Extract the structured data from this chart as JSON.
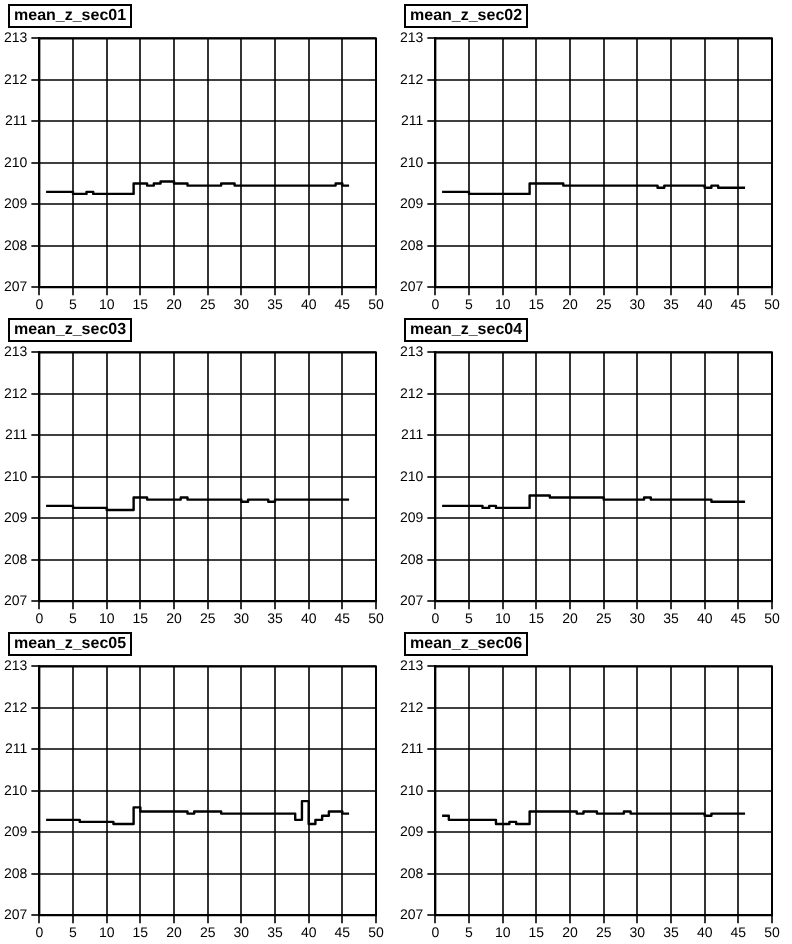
{
  "chart_data": [
    {
      "type": "step",
      "title": "mean_z_sec01",
      "x": [
        1,
        2,
        3,
        4,
        5,
        6,
        7,
        8,
        9,
        10,
        11,
        12,
        13,
        14,
        15,
        16,
        17,
        18,
        19,
        20,
        21,
        22,
        23,
        24,
        25,
        26,
        27,
        28,
        29,
        30,
        31,
        32,
        33,
        34,
        35,
        36,
        37,
        38,
        39,
        40,
        41,
        42,
        43,
        44,
        45,
        46
      ],
      "color": "#000000",
      "values": [
        209.3,
        209.3,
        209.3,
        209.3,
        209.25,
        209.25,
        209.3,
        209.25,
        209.25,
        209.25,
        209.25,
        209.25,
        209.25,
        209.5,
        209.5,
        209.45,
        209.5,
        209.55,
        209.55,
        209.5,
        209.5,
        209.45,
        209.45,
        209.45,
        209.45,
        209.45,
        209.5,
        209.5,
        209.45,
        209.45,
        209.45,
        209.45,
        209.45,
        209.45,
        209.45,
        209.45,
        209.45,
        209.45,
        209.45,
        209.45,
        209.45,
        209.45,
        209.45,
        209.5,
        209.45,
        209.45
      ],
      "xlim": [
        0,
        50
      ],
      "xticks": [
        0,
        5,
        10,
        15,
        20,
        25,
        30,
        35,
        40,
        45,
        50
      ],
      "ylim": [
        207,
        213
      ],
      "yticks": [
        207,
        208,
        209,
        210,
        211,
        212,
        213
      ],
      "grid": true
    },
    {
      "type": "step",
      "title": "mean_z_sec02",
      "x": [
        1,
        2,
        3,
        4,
        5,
        6,
        7,
        8,
        9,
        10,
        11,
        12,
        13,
        14,
        15,
        16,
        17,
        18,
        19,
        20,
        21,
        22,
        23,
        24,
        25,
        26,
        27,
        28,
        29,
        30,
        31,
        32,
        33,
        34,
        35,
        36,
        37,
        38,
        39,
        40,
        41,
        42,
        43,
        44,
        45,
        46
      ],
      "color": "#000000",
      "values": [
        209.3,
        209.3,
        209.3,
        209.3,
        209.25,
        209.25,
        209.25,
        209.25,
        209.25,
        209.25,
        209.25,
        209.25,
        209.25,
        209.5,
        209.5,
        209.5,
        209.5,
        209.5,
        209.45,
        209.45,
        209.45,
        209.45,
        209.45,
        209.45,
        209.45,
        209.45,
        209.45,
        209.45,
        209.45,
        209.45,
        209.45,
        209.45,
        209.4,
        209.45,
        209.45,
        209.45,
        209.45,
        209.45,
        209.45,
        209.4,
        209.45,
        209.4,
        209.4,
        209.4,
        209.4,
        209.4
      ],
      "xlim": [
        0,
        50
      ],
      "xticks": [
        0,
        5,
        10,
        15,
        20,
        25,
        30,
        35,
        40,
        45,
        50
      ],
      "ylim": [
        207,
        213
      ],
      "yticks": [
        207,
        208,
        209,
        210,
        211,
        212,
        213
      ],
      "grid": true
    },
    {
      "type": "step",
      "title": "mean_z_sec03",
      "x": [
        1,
        2,
        3,
        4,
        5,
        6,
        7,
        8,
        9,
        10,
        11,
        12,
        13,
        14,
        15,
        16,
        17,
        18,
        19,
        20,
        21,
        22,
        23,
        24,
        25,
        26,
        27,
        28,
        29,
        30,
        31,
        32,
        33,
        34,
        35,
        36,
        37,
        38,
        39,
        40,
        41,
        42,
        43,
        44,
        45,
        46
      ],
      "color": "#000000",
      "values": [
        209.3,
        209.3,
        209.3,
        209.3,
        209.25,
        209.25,
        209.25,
        209.25,
        209.25,
        209.2,
        209.2,
        209.2,
        209.2,
        209.5,
        209.5,
        209.45,
        209.45,
        209.45,
        209.45,
        209.45,
        209.5,
        209.45,
        209.45,
        209.45,
        209.45,
        209.45,
        209.45,
        209.45,
        209.45,
        209.4,
        209.45,
        209.45,
        209.45,
        209.4,
        209.45,
        209.45,
        209.45,
        209.45,
        209.45,
        209.45,
        209.45,
        209.45,
        209.45,
        209.45,
        209.45,
        209.45
      ],
      "xlim": [
        0,
        50
      ],
      "xticks": [
        0,
        5,
        10,
        15,
        20,
        25,
        30,
        35,
        40,
        45,
        50
      ],
      "ylim": [
        207,
        213
      ],
      "yticks": [
        207,
        208,
        209,
        210,
        211,
        212,
        213
      ],
      "grid": true
    },
    {
      "type": "step",
      "title": "mean_z_sec04",
      "x": [
        1,
        2,
        3,
        4,
        5,
        6,
        7,
        8,
        9,
        10,
        11,
        12,
        13,
        14,
        15,
        16,
        17,
        18,
        19,
        20,
        21,
        22,
        23,
        24,
        25,
        26,
        27,
        28,
        29,
        30,
        31,
        32,
        33,
        34,
        35,
        36,
        37,
        38,
        39,
        40,
        41,
        42,
        43,
        44,
        45,
        46
      ],
      "color": "#000000",
      "values": [
        209.3,
        209.3,
        209.3,
        209.3,
        209.3,
        209.3,
        209.25,
        209.3,
        209.25,
        209.25,
        209.25,
        209.25,
        209.25,
        209.55,
        209.55,
        209.55,
        209.5,
        209.5,
        209.5,
        209.5,
        209.5,
        209.5,
        209.5,
        209.5,
        209.45,
        209.45,
        209.45,
        209.45,
        209.45,
        209.45,
        209.5,
        209.45,
        209.45,
        209.45,
        209.45,
        209.45,
        209.45,
        209.45,
        209.45,
        209.45,
        209.4,
        209.4,
        209.4,
        209.4,
        209.4,
        209.4
      ],
      "xlim": [
        0,
        50
      ],
      "xticks": [
        0,
        5,
        10,
        15,
        20,
        25,
        30,
        35,
        40,
        45,
        50
      ],
      "ylim": [
        207,
        213
      ],
      "yticks": [
        207,
        208,
        209,
        210,
        211,
        212,
        213
      ],
      "grid": true
    },
    {
      "type": "step",
      "title": "mean_z_sec05",
      "x": [
        1,
        2,
        3,
        4,
        5,
        6,
        7,
        8,
        9,
        10,
        11,
        12,
        13,
        14,
        15,
        16,
        17,
        18,
        19,
        20,
        21,
        22,
        23,
        24,
        25,
        26,
        27,
        28,
        29,
        30,
        31,
        32,
        33,
        34,
        35,
        36,
        37,
        38,
        39,
        40,
        41,
        42,
        43,
        44,
        45,
        46
      ],
      "color": "#000000",
      "values": [
        209.3,
        209.3,
        209.3,
        209.3,
        209.3,
        209.25,
        209.25,
        209.25,
        209.25,
        209.25,
        209.2,
        209.2,
        209.2,
        209.6,
        209.5,
        209.5,
        209.5,
        209.5,
        209.5,
        209.5,
        209.5,
        209.45,
        209.5,
        209.5,
        209.5,
        209.5,
        209.45,
        209.45,
        209.45,
        209.45,
        209.45,
        209.45,
        209.45,
        209.45,
        209.45,
        209.45,
        209.45,
        209.3,
        209.75,
        209.2,
        209.3,
        209.4,
        209.5,
        209.5,
        209.45,
        209.45
      ],
      "xlim": [
        0,
        50
      ],
      "xticks": [
        0,
        5,
        10,
        15,
        20,
        25,
        30,
        35,
        40,
        45,
        50
      ],
      "ylim": [
        207,
        213
      ],
      "yticks": [
        207,
        208,
        209,
        210,
        211,
        212,
        213
      ],
      "grid": true
    },
    {
      "type": "step",
      "title": "mean_z_sec06",
      "x": [
        1,
        2,
        3,
        4,
        5,
        6,
        7,
        8,
        9,
        10,
        11,
        12,
        13,
        14,
        15,
        16,
        17,
        18,
        19,
        20,
        21,
        22,
        23,
        24,
        25,
        26,
        27,
        28,
        29,
        30,
        31,
        32,
        33,
        34,
        35,
        36,
        37,
        38,
        39,
        40,
        41,
        42,
        43,
        44,
        45,
        46
      ],
      "color": "#000000",
      "values": [
        209.4,
        209.3,
        209.3,
        209.3,
        209.3,
        209.3,
        209.3,
        209.3,
        209.2,
        209.2,
        209.25,
        209.2,
        209.2,
        209.5,
        209.5,
        209.5,
        209.5,
        209.5,
        209.5,
        209.5,
        209.45,
        209.5,
        209.5,
        209.45,
        209.45,
        209.45,
        209.45,
        209.5,
        209.45,
        209.45,
        209.45,
        209.45,
        209.45,
        209.45,
        209.45,
        209.45,
        209.45,
        209.45,
        209.45,
        209.4,
        209.45,
        209.45,
        209.45,
        209.45,
        209.45,
        209.45
      ],
      "xlim": [
        0,
        50
      ],
      "xticks": [
        0,
        5,
        10,
        15,
        20,
        25,
        30,
        35,
        40,
        45,
        50
      ],
      "ylim": [
        207,
        213
      ],
      "yticks": [
        207,
        208,
        209,
        210,
        211,
        212,
        213
      ],
      "grid": true
    }
  ]
}
